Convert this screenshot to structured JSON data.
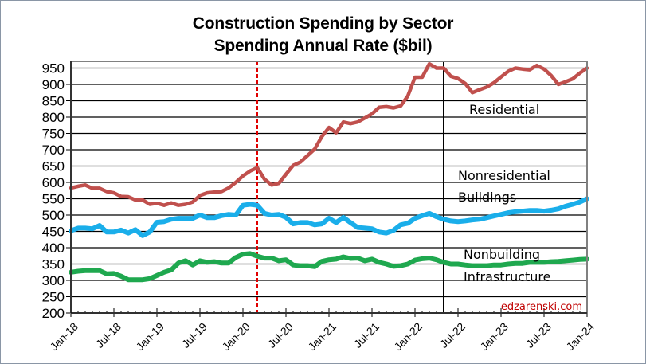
{
  "chart_data": {
    "type": "line",
    "title": "Construction Spending by Sector",
    "subtitle": "Spending Annual Rate ($bil)",
    "xlabel": "",
    "ylabel": "",
    "ylim": [
      200,
      970
    ],
    "yticks": [
      200,
      250,
      300,
      350,
      400,
      450,
      500,
      550,
      600,
      650,
      700,
      750,
      800,
      850,
      900,
      950
    ],
    "grid": true,
    "x_start": "Jan-18",
    "x_end": "Jan-24",
    "x_frequency": "monthly",
    "xtick_labels": [
      "Jan-18",
      "Jul-18",
      "Jan-19",
      "Jul-19",
      "Jan-20",
      "Jul-20",
      "Jan-21",
      "Jul-21",
      "Jan-22",
      "Jul-22",
      "Jan-23",
      "Jul-23",
      "Jan-24"
    ],
    "series": [
      {
        "name": "Residential",
        "color": "#c0504d",
        "values": [
          583,
          588,
          592,
          582,
          582,
          572,
          568,
          557,
          556,
          546,
          546,
          533,
          536,
          530,
          537,
          530,
          533,
          540,
          560,
          568,
          570,
          572,
          583,
          600,
          620,
          635,
          645,
          610,
          592,
          597,
          625,
          652,
          662,
          682,
          702,
          740,
          768,
          752,
          785,
          780,
          785,
          797,
          810,
          830,
          832,
          828,
          834,
          865,
          922,
          922,
          963,
          950,
          950,
          925,
          918,
          903,
          875,
          884,
          892,
          905,
          923,
          940,
          950,
          947,
          945,
          958,
          947,
          927,
          900,
          908,
          917,
          935,
          950
        ]
      },
      {
        "name": "Nonresidential Buildings",
        "color": "#1aaeea",
        "values": [
          452,
          460,
          460,
          458,
          468,
          448,
          448,
          454,
          445,
          455,
          437,
          448,
          478,
          480,
          487,
          490,
          490,
          490,
          500,
          492,
          492,
          498,
          502,
          500,
          530,
          533,
          530,
          505,
          500,
          502,
          493,
          473,
          477,
          477,
          470,
          473,
          490,
          477,
          493,
          477,
          462,
          460,
          458,
          448,
          445,
          453,
          470,
          475,
          490,
          498,
          505,
          495,
          487,
          482,
          480,
          482,
          485,
          487,
          492,
          497,
          502,
          507,
          510,
          512,
          514,
          514,
          512,
          515,
          519,
          527,
          533,
          540,
          550
        ]
      },
      {
        "name": "Nonbuilding Infrastructure",
        "color": "#1fa84f",
        "values": [
          325,
          328,
          330,
          330,
          330,
          320,
          321,
          313,
          302,
          302,
          302,
          305,
          315,
          325,
          332,
          353,
          360,
          347,
          360,
          355,
          357,
          353,
          353,
          370,
          380,
          382,
          374,
          368,
          368,
          360,
          363,
          347,
          345,
          345,
          342,
          358,
          363,
          365,
          372,
          367,
          368,
          360,
          365,
          355,
          350,
          343,
          345,
          350,
          362,
          366,
          368,
          363,
          355,
          350,
          350,
          347,
          345,
          345,
          345,
          347,
          347,
          350,
          352,
          352,
          355,
          355,
          355,
          357,
          358,
          360,
          362,
          364,
          365
        ]
      }
    ],
    "reference_lines": [
      {
        "label": "red dashed marker",
        "at": "Mar-20",
        "color": "#e00000",
        "style": "dashed"
      },
      {
        "label": "black marker",
        "at": "May-22",
        "color": "#000000",
        "style": "solid"
      }
    ],
    "annotations": [
      {
        "text": "Residential",
        "series": "Residential"
      },
      {
        "text": "Nonresidential",
        "series": "Nonresidential Buildings"
      },
      {
        "text": "Buildings",
        "series": "Nonresidential Buildings"
      },
      {
        "text": "Nonbuilding",
        "series": "Nonbuilding Infrastructure"
      },
      {
        "text": "Infrastructure",
        "series": "Nonbuilding Infrastructure"
      }
    ],
    "credit": {
      "text": "edzarenski.com",
      "color": "#c00000"
    },
    "legend": "none"
  }
}
